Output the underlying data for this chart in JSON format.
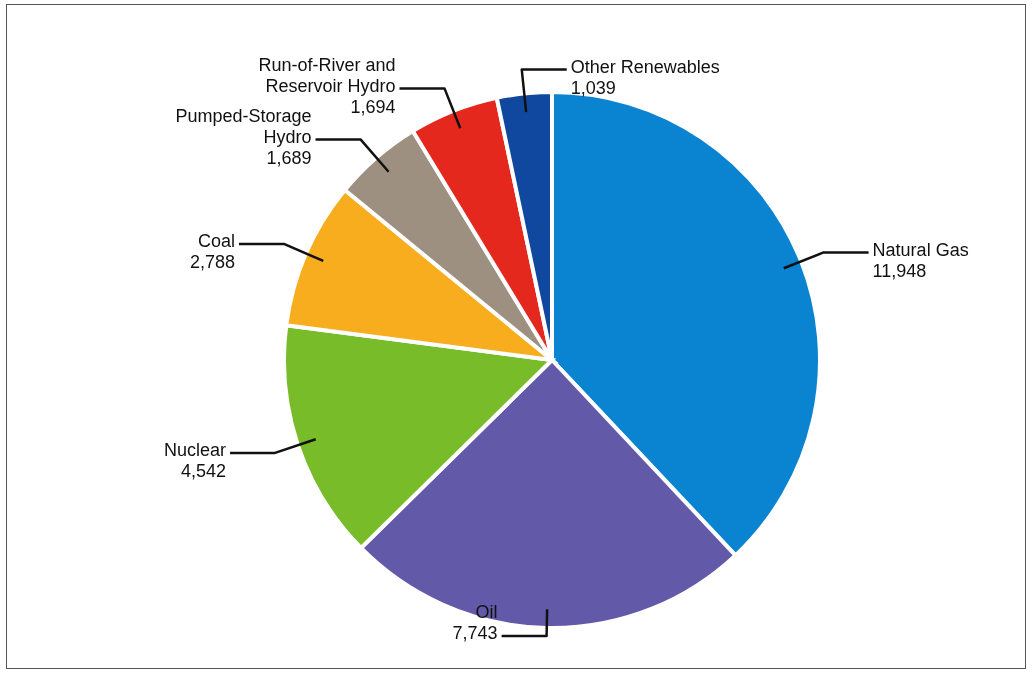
{
  "chart_data": {
    "type": "pie",
    "categories": [
      "Natural Gas",
      "Oil",
      "Nuclear",
      "Coal",
      "Pumped-Storage Hydro",
      "Run-of-River and Reservoir Hydro",
      "Other Renewables"
    ],
    "values": [
      11948,
      7743,
      4542,
      2788,
      1689,
      1694,
      1039
    ],
    "colors": [
      "#0a84d0",
      "#6259a8",
      "#78bc2a",
      "#f8ad1e",
      "#9e9080",
      "#e4281e",
      "#1048a0"
    ],
    "value_labels": [
      "11,948",
      "7,743",
      "4,542",
      "2,788",
      "1,689",
      "1,694",
      "1,039"
    ]
  }
}
